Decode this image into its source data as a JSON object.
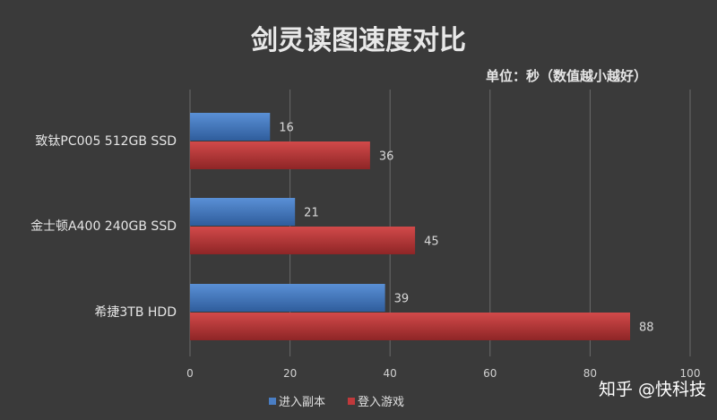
{
  "chart_data": {
    "type": "bar",
    "orientation": "horizontal",
    "title": "剑灵读图速度对比",
    "subtitle": "单位：秒（数值越小越好）",
    "categories": [
      "致钛PC005 512GB SSD",
      "金士顿A400 240GB SSD",
      "希捷3TB HDD"
    ],
    "series": [
      {
        "name": "进入副本",
        "values": [
          16,
          21,
          39
        ],
        "color": "#4a7ec4"
      },
      {
        "name": "登入游戏",
        "values": [
          36,
          45,
          88
        ],
        "color": "#c0393b"
      }
    ],
    "xlim": [
      0,
      100
    ],
    "x_ticks": [
      "0",
      "20",
      "40",
      "60",
      "80",
      "100"
    ],
    "grid": true,
    "legend_position": "bottom"
  },
  "watermark": "知乎 @快科技"
}
